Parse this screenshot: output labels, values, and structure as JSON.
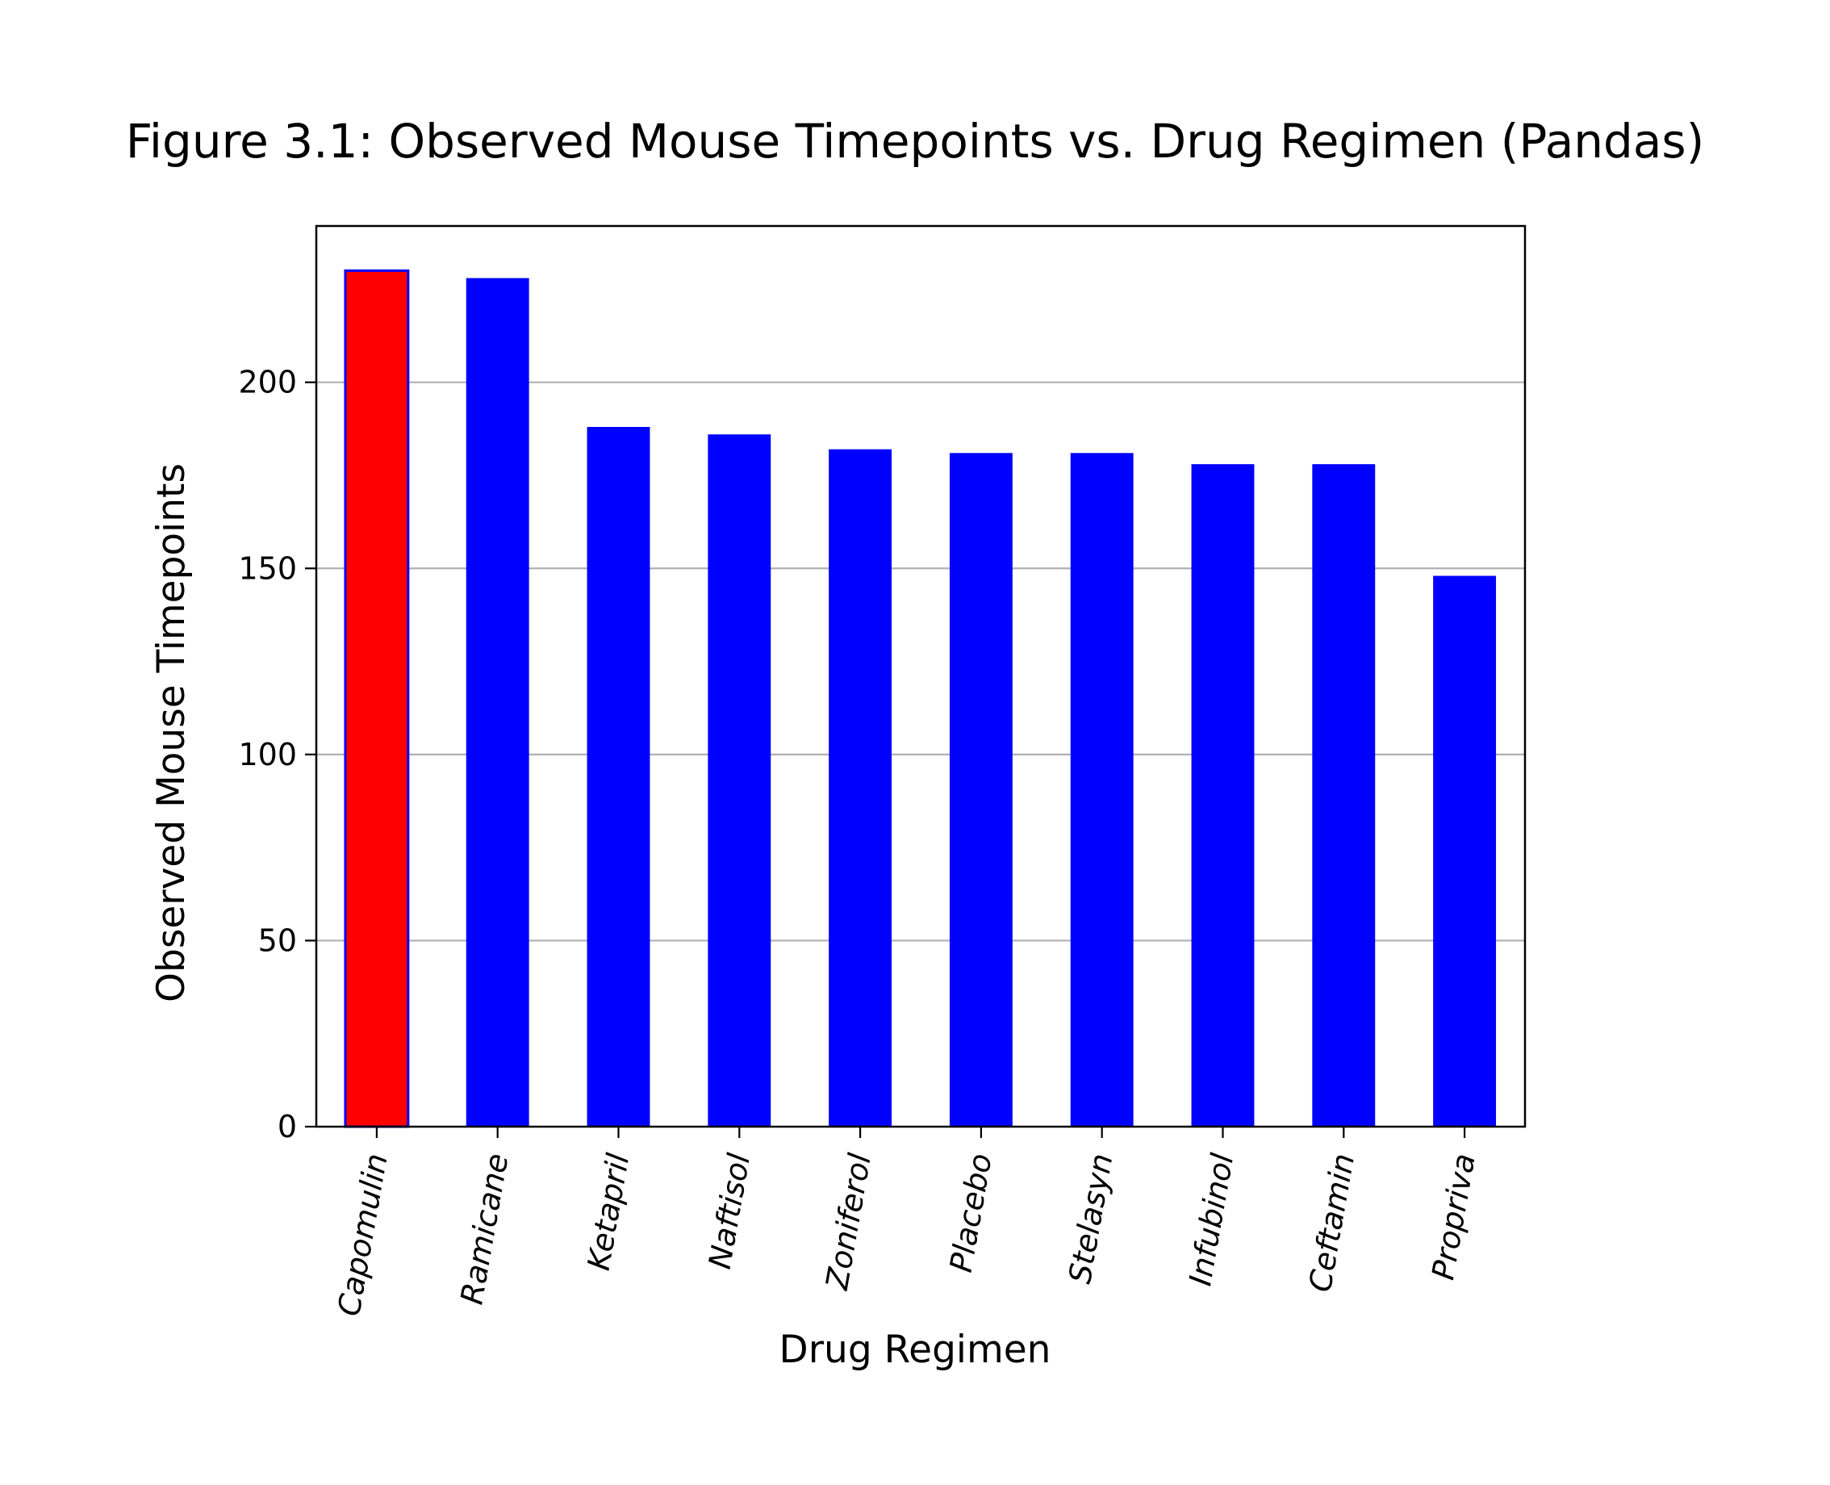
{
  "chart_data": {
    "type": "bar",
    "title": "Figure 3.1: Observed Mouse Timepoints vs. Drug Regimen (Pandas)",
    "xlabel": "Drug Regimen",
    "ylabel": "Observed Mouse Timepoints",
    "categories": [
      "Capomulin",
      "Ramicane",
      "Ketapril",
      "Naftisol",
      "Zoniferol",
      "Placebo",
      "Stelasyn",
      "Infubinol",
      "Ceftamin",
      "Propriva"
    ],
    "values": [
      230,
      228,
      188,
      186,
      182,
      181,
      181,
      178,
      178,
      148
    ],
    "ylim": [
      0,
      242
    ],
    "yticks": [
      0,
      50,
      100,
      150,
      200
    ],
    "grid": "y",
    "legend": "none",
    "colors": {
      "bar": "#0000ff",
      "highlight_bar": "#ff0000",
      "highlight_edge": "#0000ff",
      "grid": "#b0b0b0",
      "axes": "#000000"
    },
    "highlight_index": 0,
    "xtick_rotation_deg": -80
  }
}
